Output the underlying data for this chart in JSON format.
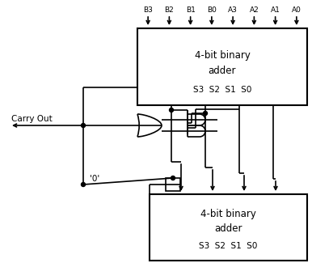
{
  "bg_color": "#ffffff",
  "top_labels": [
    "B3",
    "B2",
    "B1",
    "B0",
    "A3",
    "A2",
    "A1",
    "A0"
  ],
  "carry_out_label": "Carry Out",
  "zero_label": "'0'",
  "text_color": "#000000",
  "gate_color": "#555555",
  "lw": 1.2
}
